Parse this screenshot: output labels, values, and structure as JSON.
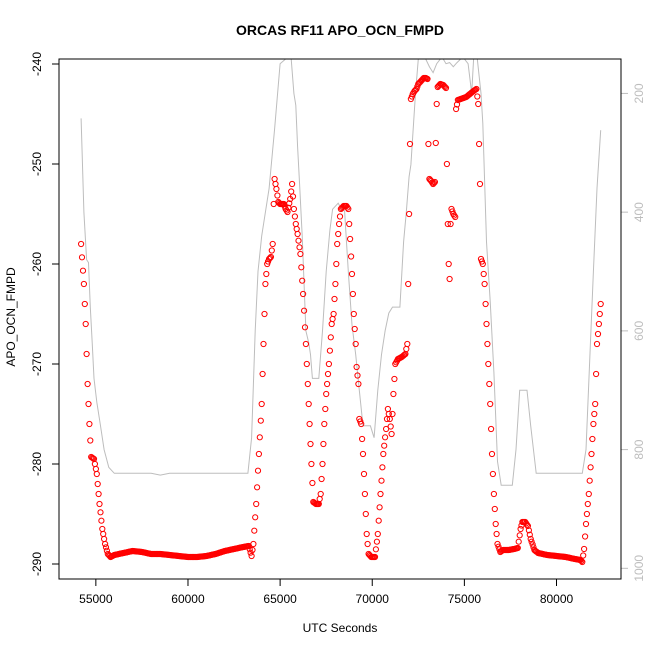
{
  "chart_data": {
    "type": "scatter",
    "title": "ORCAS RF11 APO_OCN_FMPD",
    "xlabel": "UTC Seconds",
    "ylabel": "APO_OCN_FMPD",
    "xlim": [
      53000,
      83500
    ],
    "ylim": [
      -291.5,
      -239.5
    ],
    "x_ticks": [
      55000,
      60000,
      65000,
      70000,
      75000,
      80000
    ],
    "y_ticks": [
      -290,
      -280,
      -270,
      -260,
      -250,
      -240
    ],
    "y2_ticks": [
      200,
      400,
      600,
      800,
      1000
    ],
    "y2lim": [
      1018,
      142
    ],
    "series": [
      {
        "style": "open-circles",
        "color": "#ff0000",
        "points": [
          [
            54200,
            -258
          ],
          [
            54350,
            -262
          ],
          [
            54450,
            -266
          ],
          [
            54550,
            -272
          ],
          [
            54650,
            -276
          ],
          [
            54750,
            -279.3
          ],
          [
            54900,
            -279.5
          ],
          [
            55050,
            -281
          ],
          [
            55200,
            -284
          ],
          [
            55350,
            -286.5
          ],
          [
            55500,
            -288
          ],
          [
            55650,
            -289
          ],
          [
            55800,
            -289.3
          ],
          [
            56000,
            -289.1
          ],
          [
            56500,
            -288.9
          ],
          [
            57000,
            -288.7
          ],
          [
            57500,
            -288.8
          ],
          [
            58000,
            -289
          ],
          [
            58500,
            -289
          ],
          [
            59000,
            -289.1
          ],
          [
            59500,
            -289.2
          ],
          [
            60000,
            -289.3
          ],
          [
            60500,
            -289.3
          ],
          [
            61000,
            -289.2
          ],
          [
            61500,
            -289
          ],
          [
            62000,
            -288.7
          ],
          [
            62500,
            -288.5
          ],
          [
            63000,
            -288.3
          ],
          [
            63300,
            -288.2
          ],
          [
            63450,
            -289.2
          ],
          [
            63550,
            -288
          ],
          [
            63700,
            -284
          ],
          [
            63850,
            -279
          ],
          [
            64000,
            -274
          ],
          [
            64100,
            -268
          ],
          [
            64200,
            -262
          ],
          [
            64300,
            -260
          ],
          [
            64400,
            -259.5
          ],
          [
            64500,
            -259.3
          ],
          [
            64600,
            -258
          ],
          [
            64650,
            -254
          ],
          [
            64700,
            -251.5
          ],
          [
            64800,
            -252.5
          ],
          [
            64900,
            -253.8
          ],
          [
            65000,
            -254
          ],
          [
            65200,
            -254
          ],
          [
            65300,
            -254.5
          ],
          [
            65400,
            -254.8
          ],
          [
            65550,
            -253.5
          ],
          [
            65650,
            -252
          ],
          [
            65750,
            -254.5
          ],
          [
            65850,
            -256
          ],
          [
            65950,
            -257
          ],
          [
            66100,
            -259
          ],
          [
            66250,
            -263
          ],
          [
            66400,
            -268
          ],
          [
            66550,
            -274
          ],
          [
            66700,
            -280
          ],
          [
            66800,
            -283.8
          ],
          [
            66950,
            -284
          ],
          [
            67100,
            -284
          ],
          [
            67200,
            -283
          ],
          [
            67300,
            -280
          ],
          [
            67400,
            -276
          ],
          [
            67500,
            -273
          ],
          [
            67650,
            -270
          ],
          [
            67800,
            -266
          ],
          [
            67900,
            -265
          ],
          [
            68000,
            -262
          ],
          [
            68100,
            -258
          ],
          [
            68200,
            -256
          ],
          [
            68300,
            -254.5
          ],
          [
            68450,
            -254.2
          ],
          [
            68600,
            -254.2
          ],
          [
            68700,
            -254.5
          ],
          [
            68800,
            -257.5
          ],
          [
            68900,
            -261
          ],
          [
            69000,
            -265
          ],
          [
            69100,
            -268
          ],
          [
            69150,
            -270.3
          ],
          [
            69250,
            -272
          ],
          [
            69300,
            -275.5
          ],
          [
            69400,
            -276
          ],
          [
            69500,
            -279
          ],
          [
            69600,
            -283
          ],
          [
            69700,
            -287
          ],
          [
            69800,
            -289
          ],
          [
            69950,
            -289.3
          ],
          [
            70150,
            -289.3
          ],
          [
            70300,
            -287
          ],
          [
            70450,
            -283
          ],
          [
            70600,
            -279
          ],
          [
            70750,
            -276.5
          ],
          [
            70850,
            -274.5
          ],
          [
            70950,
            -275.5
          ],
          [
            71050,
            -277
          ],
          [
            71150,
            -273
          ],
          [
            71250,
            -270
          ],
          [
            71400,
            -269.5
          ],
          [
            71600,
            -269.3
          ],
          [
            71800,
            -269
          ],
          [
            71900,
            -268
          ],
          [
            71950,
            -262
          ],
          [
            72000,
            -255
          ],
          [
            72050,
            -248
          ],
          [
            72100,
            -243.5
          ],
          [
            72200,
            -243
          ],
          [
            72300,
            -242.7
          ],
          [
            72400,
            -242.5
          ],
          [
            72500,
            -242
          ],
          [
            72600,
            -241.8
          ],
          [
            72700,
            -241.6
          ],
          [
            72800,
            -241.4
          ],
          [
            72900,
            -241.4
          ],
          [
            73000,
            -241.5
          ],
          [
            73050,
            -248
          ],
          [
            73100,
            -251.5
          ],
          [
            73200,
            -251.7
          ],
          [
            73300,
            -252
          ],
          [
            73400,
            -251.8
          ],
          [
            73500,
            -244
          ],
          [
            73550,
            -242.3
          ],
          [
            73700,
            -242
          ],
          [
            73850,
            -242.1
          ],
          [
            74000,
            -242.4
          ],
          [
            74050,
            -250
          ],
          [
            74100,
            -256
          ],
          [
            74150,
            -260
          ],
          [
            74200,
            -261.5
          ],
          [
            74250,
            -256
          ],
          [
            74300,
            -254.5
          ],
          [
            74400,
            -255
          ],
          [
            74500,
            -255.3
          ],
          [
            74550,
            -244.5
          ],
          [
            74650,
            -243.6
          ],
          [
            74800,
            -243.5
          ],
          [
            74950,
            -243.4
          ],
          [
            75100,
            -243.3
          ],
          [
            75300,
            -243
          ],
          [
            75500,
            -242.7
          ],
          [
            75650,
            -242.5
          ],
          [
            75750,
            -244
          ],
          [
            75850,
            -252
          ],
          [
            75900,
            -259.5
          ],
          [
            76000,
            -260
          ],
          [
            76100,
            -262
          ],
          [
            76200,
            -266
          ],
          [
            76300,
            -270
          ],
          [
            76400,
            -274
          ],
          [
            76500,
            -279
          ],
          [
            76600,
            -283
          ],
          [
            76700,
            -286
          ],
          [
            76800,
            -288
          ],
          [
            76950,
            -288.8
          ],
          [
            77100,
            -288.6
          ],
          [
            77400,
            -288.6
          ],
          [
            77700,
            -288.5
          ],
          [
            77900,
            -288.4
          ],
          [
            78050,
            -286.5
          ],
          [
            78150,
            -285.8
          ],
          [
            78300,
            -285.8
          ],
          [
            78450,
            -286.2
          ],
          [
            78600,
            -287.5
          ],
          [
            78800,
            -288.6
          ],
          [
            79000,
            -288.9
          ],
          [
            79500,
            -289.1
          ],
          [
            80000,
            -289.2
          ],
          [
            80500,
            -289.3
          ],
          [
            81000,
            -289.5
          ],
          [
            81300,
            -289.6
          ],
          [
            81400,
            -289.8
          ],
          [
            81500,
            -288.5
          ],
          [
            81600,
            -286
          ],
          [
            81750,
            -283
          ],
          [
            81900,
            -279
          ],
          [
            82000,
            -276
          ],
          [
            82100,
            -274
          ],
          [
            82200,
            -268
          ],
          [
            82300,
            -266
          ],
          [
            82400,
            -264
          ]
        ]
      },
      {
        "style": "line",
        "color": "#bdbdbd",
        "axis": "right",
        "points": [
          [
            54200,
            242
          ],
          [
            54350,
            400
          ],
          [
            54500,
            480
          ],
          [
            54600,
            485
          ],
          [
            54700,
            560
          ],
          [
            54800,
            620
          ],
          [
            54900,
            680
          ],
          [
            55050,
            720
          ],
          [
            55250,
            760
          ],
          [
            55450,
            800
          ],
          [
            55700,
            830
          ],
          [
            56000,
            840
          ],
          [
            57000,
            840
          ],
          [
            58000,
            840
          ],
          [
            58500,
            843
          ],
          [
            59000,
            840
          ],
          [
            60000,
            840
          ],
          [
            61000,
            840
          ],
          [
            62000,
            840
          ],
          [
            63000,
            840
          ],
          [
            63250,
            840
          ],
          [
            63450,
            780
          ],
          [
            63650,
            600
          ],
          [
            63800,
            500
          ],
          [
            64000,
            440
          ],
          [
            64200,
            400
          ],
          [
            64400,
            360
          ],
          [
            64700,
            260
          ],
          [
            65000,
            150
          ],
          [
            65300,
            142
          ],
          [
            65600,
            142
          ],
          [
            65750,
            200
          ],
          [
            65850,
            220
          ],
          [
            65950,
            290
          ],
          [
            66050,
            350
          ],
          [
            66200,
            440
          ],
          [
            66400,
            600
          ],
          [
            66550,
            620
          ],
          [
            66650,
            640
          ],
          [
            66750,
            680
          ],
          [
            66900,
            680
          ],
          [
            67100,
            680
          ],
          [
            67300,
            600
          ],
          [
            67500,
            500
          ],
          [
            67700,
            430
          ],
          [
            67850,
            395
          ],
          [
            68000,
            390
          ],
          [
            68150,
            385
          ],
          [
            68300,
            393
          ],
          [
            68500,
            398
          ],
          [
            68700,
            500
          ],
          [
            68900,
            590
          ],
          [
            69100,
            640
          ],
          [
            69300,
            700
          ],
          [
            69500,
            760
          ],
          [
            69700,
            760
          ],
          [
            69900,
            760
          ],
          [
            70100,
            780
          ],
          [
            70300,
            700
          ],
          [
            70500,
            640
          ],
          [
            70700,
            600
          ],
          [
            70900,
            570
          ],
          [
            71100,
            560
          ],
          [
            71300,
            560
          ],
          [
            71500,
            560
          ],
          [
            71700,
            450
          ],
          [
            71850,
            400
          ],
          [
            72000,
            340
          ],
          [
            72100,
            320
          ],
          [
            72200,
            270
          ],
          [
            72350,
            200
          ],
          [
            72500,
            142
          ],
          [
            72700,
            142
          ],
          [
            72900,
            142
          ],
          [
            73100,
            155
          ],
          [
            73300,
            165
          ],
          [
            73500,
            150
          ],
          [
            73700,
            142
          ],
          [
            73850,
            142
          ],
          [
            74000,
            150
          ],
          [
            74200,
            148
          ],
          [
            74400,
            155
          ],
          [
            74600,
            148
          ],
          [
            74800,
            142
          ],
          [
            75000,
            142
          ],
          [
            75200,
            150
          ],
          [
            75400,
            200
          ],
          [
            75500,
            142
          ],
          [
            75700,
            142
          ],
          [
            75900,
            200
          ],
          [
            76000,
            250
          ],
          [
            76200,
            450
          ],
          [
            76400,
            550
          ],
          [
            76600,
            670
          ],
          [
            76800,
            820
          ],
          [
            77000,
            860
          ],
          [
            77300,
            860
          ],
          [
            77600,
            860
          ],
          [
            77800,
            800
          ],
          [
            78000,
            700
          ],
          [
            78200,
            700
          ],
          [
            78400,
            700
          ],
          [
            78600,
            760
          ],
          [
            78900,
            840
          ],
          [
            79200,
            840
          ],
          [
            80000,
            840
          ],
          [
            81000,
            840
          ],
          [
            81400,
            840
          ],
          [
            81600,
            800
          ],
          [
            81800,
            650
          ],
          [
            82000,
            500
          ],
          [
            82200,
            360
          ],
          [
            82400,
            262
          ]
        ]
      }
    ]
  }
}
